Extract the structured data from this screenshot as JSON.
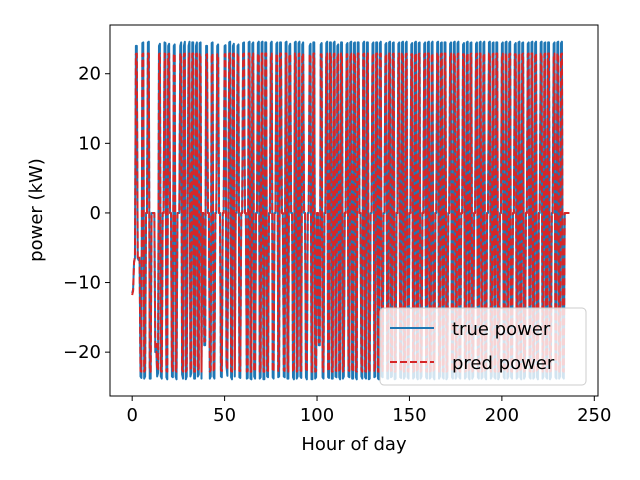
{
  "chart_data": {
    "type": "line",
    "title": "",
    "xlabel": "Hour of day",
    "ylabel": "power (kW)",
    "xlim": [
      -12,
      252
    ],
    "ylim": [
      -26.3,
      27.0
    ],
    "xticks": [
      0,
      50,
      100,
      150,
      200,
      250
    ],
    "yticks": [
      -20,
      -10,
      0,
      10,
      20
    ],
    "xtick_labels": [
      "0",
      "50",
      "100",
      "150",
      "200",
      "250"
    ],
    "ytick_labels": [
      "−20",
      "−10",
      "0",
      "10",
      "20"
    ],
    "legend_position": "lower-right",
    "grid": false,
    "series": [
      {
        "name": "true power",
        "color": "#1f77b4",
        "style": "solid",
        "x_start": 0,
        "x_step": 0.5,
        "values": [
          -11.5,
          -11,
          -7,
          -6.5,
          24,
          24,
          -6.5,
          -6.8,
          -6.5,
          -23.5,
          -23.7,
          24.4,
          24.5,
          -23.8,
          -23.5,
          0,
          0,
          24.5,
          24.6,
          -23.8,
          -23.8,
          0,
          0,
          0,
          0,
          -20,
          -19,
          -23.5,
          -23,
          24,
          24.3,
          -23.5,
          -23.8,
          0,
          0,
          24.5,
          24.4,
          -23.6,
          -23.9,
          24,
          24.3,
          0,
          0,
          -23.5,
          -23.6,
          24,
          24.2,
          -23.5,
          -23.9,
          0,
          0,
          0,
          24,
          24.5,
          -23.2,
          -23.8,
          24,
          24.6,
          -23.9,
          -23.5,
          0,
          24,
          24.6,
          -23.5,
          -23,
          24.5,
          24.5,
          -23.8,
          -23.8,
          24,
          24.5,
          -23.5,
          -23.2,
          24.4,
          24.5,
          -23.8,
          0,
          0,
          -19,
          -19,
          24,
          24,
          0,
          0,
          -23.8,
          -23.5,
          24.4,
          24.5,
          -23.5,
          -23.8,
          0,
          0,
          24,
          24.2,
          0,
          0,
          -23.5,
          -23.6,
          0,
          0,
          24,
          24.1,
          -22,
          -23.4,
          0,
          24.5,
          24.6,
          -23.6,
          -23.9,
          24,
          24.3,
          -23.5,
          0,
          0,
          24,
          24.2,
          -23.6,
          -23.7,
          0,
          0,
          24.4,
          24.5,
          0,
          0,
          -23.8,
          -23.7,
          24.5,
          24.6,
          -23.8,
          -23.9,
          24.3,
          24.5,
          -23.5,
          -23.8,
          0,
          0,
          24.4,
          24.6,
          -23.8,
          -23.6,
          24.5,
          24.6,
          -23.9,
          -23.9,
          24.5,
          24.5,
          -23.5,
          -23.6,
          0,
          0,
          24.4,
          24.6,
          -23.6,
          -23.8,
          0,
          0,
          24.3,
          24.5,
          -23.6,
          -23.5,
          24.5,
          24.5,
          0,
          0,
          -23.5,
          -23.6,
          24.5,
          24.6,
          -23.8,
          -23.8,
          24,
          24.3,
          0,
          0,
          -23.6,
          -23.9,
          24.5,
          24.6,
          -23.8,
          -23.5,
          24.4,
          24.6,
          -23.5,
          -23.7,
          24.2,
          24.5,
          0,
          0,
          -23.6,
          -23.9,
          0,
          0,
          24,
          24.3,
          -23.9,
          -23.9,
          24.5,
          24.5,
          -23.8,
          -23.6,
          0,
          0,
          -19,
          -19,
          24.2,
          24.4,
          -23.6,
          -23.8,
          0,
          0,
          24.4,
          24.6,
          -23.6,
          -23.7,
          24.5,
          24.5,
          -23.8,
          -23.8,
          24.4,
          24.6,
          -23.5,
          -23.6,
          24,
          24.2,
          -23.6,
          -23.9,
          24.5,
          24.5,
          -23.8,
          -23.5,
          0,
          0,
          24.2,
          24.4,
          -23.5,
          -23.6,
          24.5,
          24.6,
          -23.8,
          -23.8,
          24.4,
          24.5,
          -23.6,
          -23.9,
          24.5,
          24.5,
          0,
          0,
          -23.5,
          -23.8,
          24.4,
          24.6,
          -23.6,
          -23.8,
          24.5,
          24.5,
          -23.9,
          -23.8,
          0,
          0,
          24.3,
          24.5,
          -23.6,
          -23.5,
          24.5,
          24.5,
          -23.8,
          -23.9,
          24.4,
          24.6,
          -23.5,
          -23.6,
          0,
          0,
          24.2,
          24.4,
          -23.8,
          -23.8,
          24.5,
          24.6,
          -23.6,
          -23.5,
          24.4,
          24.5,
          -23.9,
          -23.8,
          0,
          0,
          24.3,
          24.5,
          -23.6,
          -23.7,
          24.5,
          24.6,
          -23.8,
          -23.5,
          24.4,
          24.6,
          -23.6,
          -23.8,
          0,
          0,
          24.2,
          24.4,
          -23.8,
          -23.6,
          24.5,
          24.6,
          -23.6,
          -23.9,
          24.4,
          24.5,
          -23.8,
          -23.5,
          0,
          0,
          24.3,
          24.5,
          -23.6,
          -23.8,
          24.5,
          24.6,
          -23.8,
          -23.6,
          24.4,
          24.6,
          -23.6,
          -23.9,
          0,
          0,
          24.5,
          24.6,
          -23.8,
          -23.5,
          24.4,
          24.5,
          -23.6,
          -23.8,
          24.5,
          24.5,
          -23.9,
          -23.6,
          0,
          0,
          24.3,
          24.5,
          -23.6,
          -23.8,
          24.5,
          24.6,
          -23.8,
          -23.5,
          24.4,
          24.6,
          -23.6,
          -23.8,
          0,
          0,
          24.2,
          24.4,
          -23.8,
          -23.6,
          24.5,
          24.6,
          -23.6,
          -23.9,
          24.4,
          24.5,
          -23.8,
          -23.5,
          0,
          0,
          24.3,
          24.5,
          -23.6,
          -23.8,
          24.5,
          24.6,
          -23.8,
          -23.6,
          24.4,
          24.6,
          -23.6,
          -23.9,
          0,
          0,
          24.5,
          24.6,
          -23.8,
          -23.5,
          24.4,
          24.5,
          -23.6,
          -23.8,
          24.5,
          24.5,
          -23.9,
          -23.6,
          0,
          0,
          24.3,
          24.5,
          -23.6,
          -23.8,
          24.5,
          24.6,
          -23.8,
          -23.5,
          24.4,
          24.6,
          -23.6,
          -23.8,
          0,
          0,
          24.2,
          24.4,
          -23.8,
          -23.6,
          24.5,
          24.6,
          -23.6,
          -23.9,
          24.4,
          24.5,
          -23.8,
          -23.5,
          0,
          0,
          24.3,
          24.5,
          -23.6,
          -23.8,
          24.5,
          24.6,
          -23.8,
          -23.6,
          24.4,
          24.6,
          -23.6,
          -23.9,
          0,
          0,
          24.5,
          24.6,
          -23.8,
          -23.5,
          24.4,
          24.5,
          -23.6,
          -23.8,
          24.5,
          24.5,
          -23.9,
          -23.6,
          0,
          0,
          24.3,
          24.5,
          -23.6,
          -23.8,
          24.5,
          24.6,
          -23.8,
          -23.5,
          24.4,
          24.6,
          -23.6,
          -23.8,
          0,
          0,
          0,
          0,
          0,
          0
        ]
      },
      {
        "name": "pred power",
        "color": "#d62728",
        "style": "dashed",
        "x_start": 0,
        "x_step": 0.5,
        "values": [
          -11.8,
          -11.2,
          -7.2,
          -6.2,
          22.8,
          22.9,
          -6.3,
          -6.6,
          -6.3,
          -22.7,
          -22.8,
          22.8,
          22.9,
          -22.8,
          -22.6,
          0,
          0,
          22.9,
          22.9,
          -22.7,
          -22.8,
          0,
          0,
          0,
          0,
          -19.5,
          -18.8,
          -22.6,
          -22.4,
          22.8,
          22.9,
          -22.7,
          -22.8,
          0,
          0,
          22.9,
          22.8,
          -22.7,
          -22.8,
          22.8,
          22.9,
          0,
          0,
          -22.6,
          -22.7,
          22.7,
          22.9,
          -22.6,
          -22.8,
          0,
          0,
          0,
          22.8,
          22.9,
          -22.5,
          -22.8,
          22.8,
          22.9,
          -22.8,
          -22.6,
          0,
          22.8,
          22.9,
          -22.6,
          -22.3,
          22.9,
          22.9,
          -22.8,
          -22.8,
          22.8,
          22.9,
          -22.6,
          -22.4,
          22.8,
          22.9,
          -22.8,
          0,
          0,
          -18.5,
          -18.4,
          22.7,
          22.8,
          0,
          0,
          -22.8,
          -22.6,
          22.8,
          22.9,
          -22.6,
          -22.8,
          0,
          0,
          22.8,
          22.8,
          0,
          0,
          -22.6,
          -22.7,
          0,
          0,
          22.8,
          22.8,
          -21.5,
          -22.5,
          0,
          22.9,
          22.9,
          -22.7,
          -22.8,
          22.8,
          22.9,
          -22.6,
          0,
          0,
          22.8,
          22.8,
          -22.7,
          -22.7,
          0,
          0,
          22.8,
          22.9,
          0,
          0,
          -22.8,
          -22.7,
          22.9,
          22.9,
          -22.8,
          -22.8,
          22.8,
          22.9,
          -22.6,
          -22.8,
          0,
          0,
          22.8,
          22.9,
          -22.8,
          -22.7,
          22.9,
          22.9,
          -22.8,
          -22.8,
          22.9,
          22.9,
          -22.6,
          -22.7,
          0,
          0,
          22.8,
          22.9,
          -22.7,
          -22.8,
          0,
          0,
          22.8,
          22.9,
          -22.7,
          -22.6,
          22.9,
          22.9,
          0,
          0,
          -22.6,
          -22.7,
          22.9,
          22.9,
          -22.8,
          -22.8,
          22.8,
          22.8,
          0,
          0,
          -22.7,
          -22.8,
          22.9,
          22.9,
          -22.8,
          -22.6,
          22.8,
          22.9,
          -22.6,
          -22.7,
          22.8,
          22.9,
          0,
          0,
          -22.7,
          -22.8,
          0,
          0,
          22.8,
          22.8,
          -22.8,
          -22.8,
          22.9,
          22.9,
          -22.8,
          -22.7,
          0,
          0,
          -18.6,
          -18.5,
          22.8,
          22.8,
          -22.7,
          -22.8,
          0,
          0,
          22.8,
          22.9,
          -22.7,
          -22.7,
          22.9,
          22.9,
          -22.8,
          -22.8,
          22.8,
          22.9,
          -22.6,
          -22.7,
          22.8,
          22.8,
          -22.7,
          -22.8,
          22.9,
          22.9,
          -22.8,
          -22.6,
          0,
          0,
          22.8,
          22.8,
          -22.6,
          -22.7,
          22.9,
          22.9,
          -22.8,
          -22.8,
          22.8,
          22.9,
          -22.7,
          -22.8,
          22.9,
          22.9,
          0,
          0,
          -22.6,
          -22.8,
          22.8,
          22.9,
          -22.7,
          -22.8,
          22.9,
          22.9,
          -22.8,
          -22.8,
          0,
          0,
          22.8,
          22.9,
          -22.7,
          -22.6,
          22.9,
          22.9,
          -22.8,
          -22.8,
          22.8,
          22.9,
          -22.6,
          -22.7,
          0,
          0,
          22.8,
          22.8,
          -22.8,
          -22.8,
          22.9,
          22.9,
          -22.7,
          -22.6,
          22.8,
          22.9,
          -22.8,
          -22.8,
          0,
          0,
          22.8,
          22.9,
          -22.7,
          -22.7,
          22.9,
          22.9,
          -22.8,
          -22.6,
          22.8,
          22.9,
          -22.7,
          -22.8,
          0,
          0,
          22.8,
          22.8,
          -22.8,
          -22.7,
          22.9,
          22.9,
          -22.7,
          -22.8,
          22.8,
          22.9,
          -22.8,
          -22.6,
          0,
          0,
          22.8,
          22.9,
          -22.7,
          -22.8,
          22.9,
          22.9,
          -22.8,
          -22.7,
          22.8,
          22.9,
          -22.7,
          -22.8,
          0,
          0,
          22.9,
          22.9,
          -22.8,
          -22.6,
          22.8,
          22.9,
          -22.7,
          -22.8,
          22.9,
          22.9,
          -22.8,
          -22.7,
          0,
          0,
          22.8,
          22.9,
          -22.7,
          -22.8,
          22.9,
          22.9,
          -22.8,
          -22.6,
          22.8,
          22.9,
          -22.7,
          -22.8,
          0,
          0,
          22.8,
          22.8,
          -22.8,
          -22.7,
          22.9,
          22.9,
          -22.7,
          -22.8,
          22.8,
          22.9,
          -22.8,
          -22.6,
          0,
          0,
          22.8,
          22.9,
          -22.7,
          -22.8,
          22.9,
          22.9,
          -22.8,
          -22.7,
          22.8,
          22.9,
          -22.7,
          -22.8,
          0,
          0,
          22.9,
          22.9,
          -22.8,
          -22.6,
          22.8,
          22.9,
          -22.7,
          -22.8,
          22.9,
          22.9,
          -22.8,
          -22.7,
          0,
          0,
          22.8,
          22.9,
          -22.7,
          -22.8,
          22.9,
          22.9,
          -22.8,
          -22.6,
          22.8,
          22.9,
          -22.7,
          -22.8,
          0,
          0,
          22.8,
          22.8,
          -22.8,
          -22.7,
          22.9,
          22.9,
          -22.7,
          -22.8,
          22.8,
          22.9,
          -22.8,
          -22.6,
          0,
          0,
          22.8,
          22.9,
          -22.7,
          -22.8,
          22.9,
          22.9,
          -22.8,
          -22.7,
          22.8,
          22.9,
          -22.7,
          -22.8,
          0,
          0,
          22.9,
          22.9,
          -22.8,
          -22.6,
          22.8,
          22.9,
          -22.7,
          -22.8,
          22.9,
          22.9,
          -22.8,
          -22.7,
          0,
          0,
          22.8,
          22.9,
          -22.7,
          -22.8,
          22.9,
          22.9,
          -22.8,
          -22.6,
          22.8,
          22.9,
          -22.7,
          -22.8,
          0,
          0,
          0,
          0,
          0,
          0
        ]
      }
    ]
  }
}
